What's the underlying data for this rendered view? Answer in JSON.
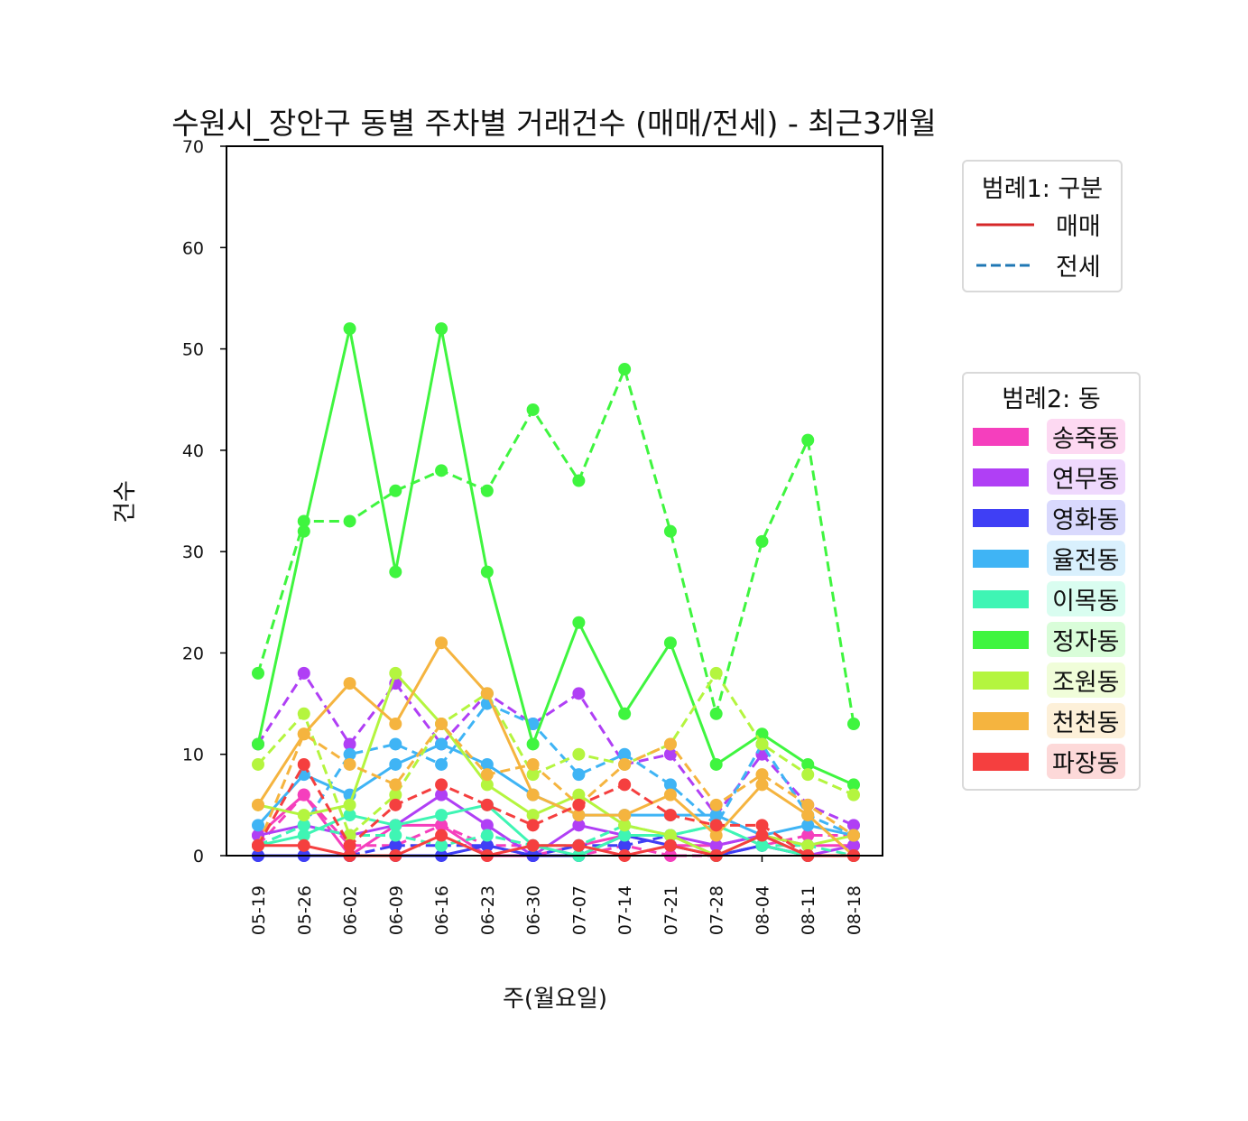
{
  "chart_data": {
    "type": "line",
    "title": "수원시_장안구 동별 주차별 거래건수 (매매/전세) - 최근3개월",
    "xlabel": "주(월요일)",
    "ylabel": "건수",
    "ylim": [
      0,
      70
    ],
    "yticks": [
      0,
      10,
      20,
      30,
      40,
      50,
      60,
      70
    ],
    "grid": false,
    "categories": [
      "05-19",
      "05-26",
      "06-02",
      "06-09",
      "06-16",
      "06-23",
      "06-30",
      "07-07",
      "07-14",
      "07-21",
      "07-28",
      "08-04",
      "08-11",
      "08-18"
    ],
    "legend1": {
      "title": "범례1: 구분",
      "entries": [
        {
          "label": "매매",
          "color": "#d62728",
          "style": "solid"
        },
        {
          "label": "전세",
          "color": "#1f77b4",
          "style": "dashed"
        }
      ]
    },
    "legend2": {
      "title": "범례2: 동"
    },
    "series": [
      {
        "dong": "송죽동",
        "type": "매매",
        "color": "#f53fbd",
        "values": [
          2,
          6,
          0,
          3,
          3,
          0,
          0,
          1,
          2,
          1,
          1,
          2,
          1,
          1
        ]
      },
      {
        "dong": "송죽동",
        "type": "전세",
        "color": "#f53fbd",
        "values": [
          1,
          6,
          1,
          1,
          3,
          1,
          1,
          0,
          1,
          0,
          0,
          1,
          2,
          2
        ]
      },
      {
        "dong": "연무동",
        "type": "매매",
        "color": "#b03ff5",
        "values": [
          2,
          3,
          2,
          3,
          6,
          3,
          0,
          3,
          2,
          2,
          1,
          2,
          0,
          1
        ]
      },
      {
        "dong": "연무동",
        "type": "전세",
        "color": "#b03ff5",
        "values": [
          11,
          18,
          11,
          17,
          11,
          16,
          13,
          16,
          9,
          10,
          4,
          10,
          5,
          3
        ]
      },
      {
        "dong": "영화동",
        "type": "매매",
        "color": "#3f3ff5",
        "values": [
          0,
          0,
          0,
          0,
          0,
          1,
          0,
          0,
          2,
          1,
          0,
          1,
          0,
          0
        ]
      },
      {
        "dong": "영화동",
        "type": "전세",
        "color": "#3f3ff5",
        "values": [
          0,
          0,
          0,
          1,
          1,
          1,
          0,
          1,
          1,
          2,
          0,
          1,
          0,
          0
        ]
      },
      {
        "dong": "율전동",
        "type": "매매",
        "color": "#3fb4f5",
        "values": [
          3,
          8,
          6,
          9,
          11,
          9,
          6,
          4,
          4,
          4,
          4,
          2,
          3,
          2
        ]
      },
      {
        "dong": "율전동",
        "type": "전세",
        "color": "#3fb4f5",
        "values": [
          1,
          3,
          10,
          11,
          9,
          15,
          13,
          8,
          10,
          7,
          3,
          11,
          4,
          2
        ]
      },
      {
        "dong": "이목동",
        "type": "매매",
        "color": "#3ff5b4",
        "values": [
          1,
          2,
          4,
          3,
          4,
          5,
          1,
          0,
          2,
          2,
          3,
          1,
          0,
          0
        ]
      },
      {
        "dong": "이목동",
        "type": "전세",
        "color": "#3ff5b4",
        "values": [
          1,
          3,
          2,
          2,
          1,
          2,
          1,
          1,
          3,
          2,
          3,
          1,
          1,
          0
        ]
      },
      {
        "dong": "정자동",
        "type": "매매",
        "color": "#3ff53f",
        "values": [
          11,
          32,
          52,
          28,
          52,
          28,
          11,
          23,
          14,
          21,
          9,
          12,
          9,
          7
        ]
      },
      {
        "dong": "정자동",
        "type": "전세",
        "color": "#3ff53f",
        "values": [
          18,
          33,
          33,
          36,
          38,
          36,
          44,
          37,
          48,
          32,
          14,
          31,
          41,
          13
        ]
      },
      {
        "dong": "조원동",
        "type": "매매",
        "color": "#b4f53f",
        "values": [
          5,
          4,
          5,
          18,
          13,
          7,
          4,
          6,
          3,
          2,
          0,
          2,
          1,
          2
        ]
      },
      {
        "dong": "조원동",
        "type": "전세",
        "color": "#b4f53f",
        "values": [
          9,
          14,
          2,
          6,
          13,
          16,
          8,
          10,
          9,
          11,
          18,
          11,
          8,
          6
        ]
      },
      {
        "dong": "천천동",
        "type": "매매",
        "color": "#f5b43f",
        "values": [
          5,
          12,
          17,
          13,
          21,
          16,
          6,
          4,
          4,
          6,
          2,
          7,
          4,
          0
        ]
      },
      {
        "dong": "천천동",
        "type": "전세",
        "color": "#f5b43f",
        "values": [
          1,
          12,
          9,
          7,
          13,
          8,
          9,
          5,
          9,
          11,
          5,
          8,
          5,
          2
        ]
      },
      {
        "dong": "파장동",
        "type": "매매",
        "color": "#f53f3f",
        "values": [
          1,
          1,
          0,
          0,
          2,
          0,
          1,
          1,
          0,
          1,
          0,
          2,
          0,
          0
        ]
      },
      {
        "dong": "파장동",
        "type": "전세",
        "color": "#f53f3f",
        "values": [
          1,
          9,
          1,
          5,
          7,
          5,
          3,
          5,
          7,
          4,
          3,
          3,
          0,
          0
        ]
      }
    ],
    "dongs": [
      {
        "name": "송죽동",
        "color": "#f53fbd"
      },
      {
        "name": "연무동",
        "color": "#b03ff5"
      },
      {
        "name": "영화동",
        "color": "#3f3ff5"
      },
      {
        "name": "율전동",
        "color": "#3fb4f5"
      },
      {
        "name": "이목동",
        "color": "#3ff5b4"
      },
      {
        "name": "정자동",
        "color": "#3ff53f"
      },
      {
        "name": "조원동",
        "color": "#b4f53f"
      },
      {
        "name": "천천동",
        "color": "#f5b43f"
      },
      {
        "name": "파장동",
        "color": "#f53f3f"
      }
    ]
  }
}
